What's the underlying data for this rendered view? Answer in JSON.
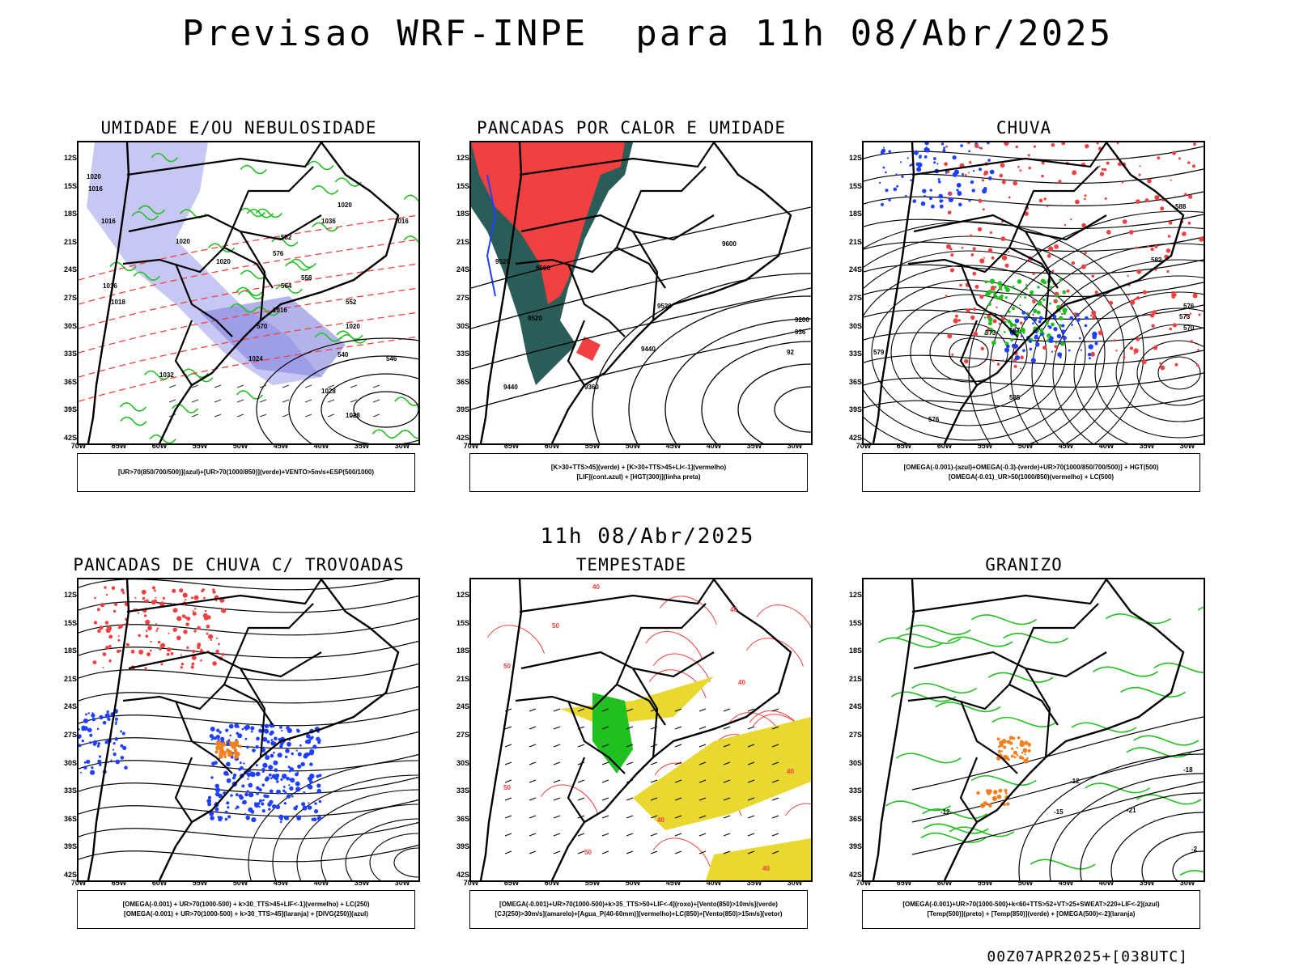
{
  "header": {
    "title": "Previsao WRF-INPE  para 11h 08/Abr/2025",
    "subtitle": "11h 08/Abr/2025",
    "footer": "00Z07APR2025+[038UTC]"
  },
  "axes": {
    "lat_labels": [
      "12S",
      "15S",
      "18S",
      "21S",
      "24S",
      "27S",
      "30S",
      "33S",
      "36S",
      "39S",
      "42S"
    ],
    "lon_labels": [
      "70W",
      "65W",
      "60W",
      "55W",
      "50W",
      "45W",
      "40W",
      "35W",
      "30W"
    ]
  },
  "colors": {
    "purple": "#b4b4f0",
    "blue": "#2040ff",
    "green": "#20c020",
    "red": "#f04040",
    "orange": "#f08020",
    "yellow": "#e8d830",
    "darkteal": "#2a5c58",
    "black": "#000000"
  },
  "panels": [
    {
      "title": "UMIDADE E/OU NEBULOSIDADE",
      "legend": [
        "[UR>70(850/700/500)](azul)+[UR>70(1000/850)](verde)+VENTO>5m/s+ESP(500/1000)"
      ],
      "contour_labels": [
        "1020",
        "1016",
        "1016",
        "1020",
        "1020",
        "1016",
        "1020",
        "1024",
        "1028",
        "1028",
        "1032",
        "1036",
        "1020",
        "1016",
        "1016",
        "1018",
        "564",
        "570",
        "558",
        "552",
        "546",
        "540",
        "576",
        "582"
      ]
    },
    {
      "title": "PANCADAS POR CALOR E UMIDADE",
      "legend": [
        "[K>30+TTS>45](verde) + [K>30+TTS>45+LI<-1](vermelho)",
        "[LIF](cont.azul) + [HGT(300)](linha preta)"
      ],
      "contour_labels": [
        "9600",
        "9600",
        "9520",
        "9520",
        "9520",
        "9440",
        "9440",
        "9360",
        "9200",
        "936",
        "92"
      ]
    },
    {
      "title": "CHUVA",
      "legend": [
        "[OMEGA(-0.001)-(azul)+OMEGA(-0.3)-(verde)+UR>70(1000/850/700/500)] + HGT(500)",
        "[OMEGA(-0.01)_UR>50(1000/850)(vermelho) + LC(500)"
      ],
      "contour_labels": [
        "588",
        "582",
        "579",
        "576",
        "573",
        "570",
        "567",
        "576",
        "585",
        "573"
      ]
    },
    {
      "title": "PANCADAS DE CHUVA C/ TROVOADAS",
      "legend": [
        "[OMEGA(-0.001) + UR>70(1000-500) + k>30_TTS>45+LIF<-1](vermelho) + LC(250)",
        "[OMEGA(-0.001) + UR>70(1000-500) + k>30_TTS>45](laranja) + [DIVG(250)](azul)"
      ],
      "contour_labels": []
    },
    {
      "title": "TEMPESTADE",
      "legend": [
        "[OMEGA(-0.001)+UR>70(1000-500)+k>35_TTS>50+LIF<-4](roxo)+[Vento(850)>10m/s](verde)",
        "[CJ(250)>30m/s](amarelo)+[Agua_P(40-60mm)](vermelho)+LC(850)+[Vento(850)>15m/s](vetor)"
      ],
      "contour_labels": [
        "40",
        "50",
        "40",
        "50",
        "40",
        "40",
        "50",
        "40",
        "50",
        "40"
      ]
    },
    {
      "title": "GRANIZO",
      "legend": [
        "[OMEGA(-0.001)+UR>70(1000-500)+k<60+TTS>52+VT>25+SWEAT>220+LIF<-2](azul)",
        "[Temp(500)](preto) + [Temp(850)](verde) + [OMEGA(500)<-2](laranja)"
      ],
      "contour_labels": [
        "-12",
        "-15",
        "-18",
        "-21",
        "-12",
        "-2"
      ]
    }
  ]
}
